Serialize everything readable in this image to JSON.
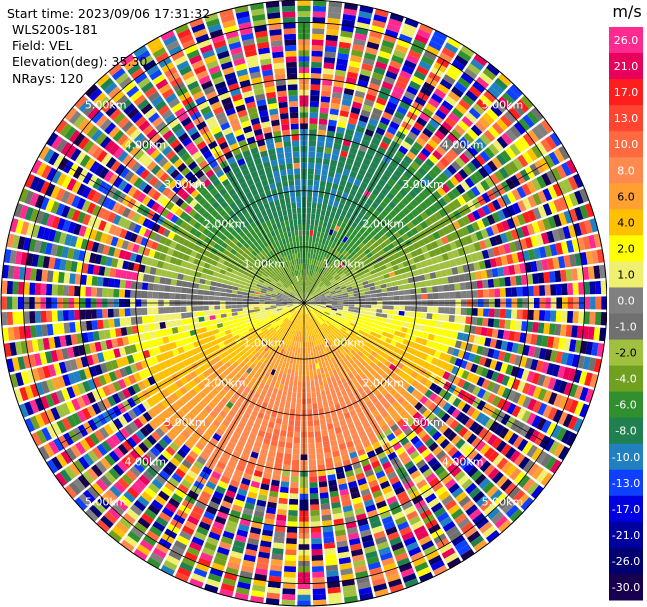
{
  "header": {
    "start_time": "Start time: 2023/09/06 17:31:32",
    "instrument": "WLS200s-181",
    "field": "Field: VEL",
    "elevation": "Elevation(deg): 35.30",
    "nrays": "NRays: 120"
  },
  "chart_data": {
    "type": "heatmap",
    "projection": "polar-ppi",
    "nrays": 120,
    "range_rings_km": [
      1.0,
      2.0,
      3.0,
      4.0,
      5.0
    ],
    "ring_labels": [
      "1.00km",
      "2.00km",
      "3.00km",
      "4.00km",
      "5.00km"
    ],
    "colorbar": {
      "unit": "m/s",
      "tick_labels": [
        "26.0",
        "21.0",
        "17.0",
        "13.0",
        "10.0",
        "8.0",
        "6.0",
        "4.0",
        "2.0",
        "1.0",
        "0.0",
        "-1.0",
        "-2.0",
        "-4.0",
        "-6.0",
        "-8.0",
        "-10.0",
        "-13.0",
        "-17.0",
        "-21.0",
        "-26.0",
        "-30.0"
      ],
      "colors": [
        "#ff2a8f",
        "#e8005a",
        "#ff1e1e",
        "#ff4530",
        "#ff6a40",
        "#ff8a50",
        "#ffa030",
        "#ffc000",
        "#ffff00",
        "#f0f070",
        "#808080",
        "#707070",
        "#a0c040",
        "#70a020",
        "#309030",
        "#208050",
        "#2080c0",
        "#1040ff",
        "#0000e0",
        "#0000a0",
        "#000070",
        "#180050"
      ]
    }
  }
}
